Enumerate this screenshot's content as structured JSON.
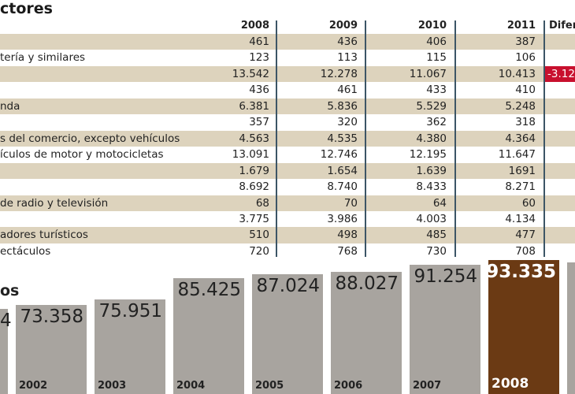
{
  "table": {
    "title": "ctores",
    "headers": [
      "2008",
      "2009",
      "2010",
      "2011",
      "Difer"
    ],
    "rows": [
      {
        "label": "",
        "values": [
          "461",
          "436",
          "406",
          "387"
        ],
        "dif": ""
      },
      {
        "label": "tería y similares",
        "values": [
          "123",
          "113",
          "115",
          "106"
        ],
        "dif": ""
      },
      {
        "label": "",
        "values": [
          "13.542",
          "12.278",
          "11.067",
          "10.413"
        ],
        "dif": "-3.12"
      },
      {
        "label": "",
        "values": [
          "436",
          "461",
          "433",
          "410"
        ],
        "dif": ""
      },
      {
        "label": "nda",
        "values": [
          "6.381",
          "5.836",
          "5.529",
          "5.248"
        ],
        "dif": ""
      },
      {
        "label": "",
        "values": [
          "357",
          "320",
          "362",
          "318"
        ],
        "dif": ""
      },
      {
        "label": "s del comercio, excepto vehículos",
        "values": [
          "4.563",
          "4.535",
          "4.380",
          "4.364"
        ],
        "dif": ""
      },
      {
        "label": "ículos de motor y motocicletas",
        "values": [
          "13.091",
          "12.746",
          "12.195",
          "11.647"
        ],
        "dif": ""
      },
      {
        "label": "",
        "values": [
          "1.679",
          "1.654",
          "1.639",
          "1691"
        ],
        "dif": ""
      },
      {
        "label": "",
        "values": [
          "8.692",
          "8.740",
          "8.433",
          "8.271"
        ],
        "dif": ""
      },
      {
        "label": " de radio y televisión",
        "values": [
          "68",
          "70",
          "64",
          "60"
        ],
        "dif": ""
      },
      {
        "label": "",
        "values": [
          "3.775",
          "3.986",
          "4.003",
          "4.134"
        ],
        "dif": ""
      },
      {
        "label": "adores turísticos",
        "values": [
          "510",
          "498",
          "485",
          "477"
        ],
        "dif": ""
      },
      {
        "label": "ectáculos",
        "values": [
          "720",
          "768",
          "730",
          "708"
        ],
        "dif": ""
      }
    ]
  },
  "chart_data": {
    "type": "bar",
    "title": "os",
    "categories": [
      "",
      "2002",
      "2003",
      "2004",
      "2005",
      "2006",
      "2007",
      "2008"
    ],
    "labels": [
      "4",
      "73.358",
      "75.951",
      "85.425",
      "87.024",
      "88.027",
      "91.254",
      "93.335"
    ],
    "values": [
      null,
      73358,
      75951,
      85425,
      87024,
      88027,
      91254,
      93335
    ],
    "highlight": "2008",
    "colors": {
      "bar": "#a8a49f",
      "highlight": "#6b3a14"
    }
  }
}
